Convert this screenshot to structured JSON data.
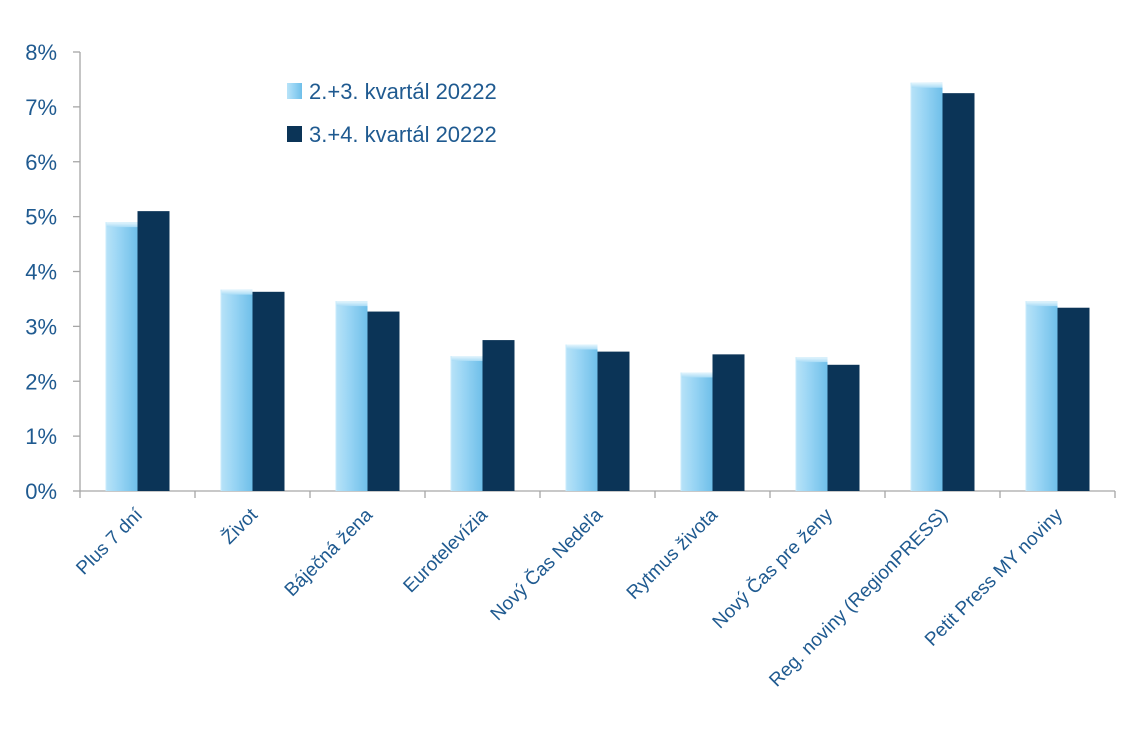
{
  "chart_data": {
    "type": "bar",
    "categories": [
      "Plus 7 dní",
      "Život",
      "Báječná žena",
      "Eurotelevízia",
      "Nový Čas Nedeľa",
      "Rytmus života",
      "Nový Čas pre ženy",
      "Reg. noviny (RegionPRESS)",
      "Petit Press MY noviny"
    ],
    "series": [
      {
        "name": "2.+3. kvartál 20222",
        "values": [
          4.9,
          3.67,
          3.46,
          2.46,
          2.67,
          2.16,
          2.44,
          7.44,
          3.46
        ]
      },
      {
        "name": "3.+4. kvartál 20222",
        "values": [
          5.1,
          3.63,
          3.27,
          2.75,
          2.54,
          2.49,
          2.3,
          7.25,
          3.34
        ]
      }
    ],
    "ylim": [
      0,
      8
    ],
    "yticks": [
      "0%",
      "1%",
      "2%",
      "3%",
      "4%",
      "5%",
      "6%",
      "7%",
      "8%"
    ],
    "grid": false,
    "legend_position": "top-center",
    "colors": {
      "series1": "#8fd0f3",
      "series2": "#0b3457",
      "text": "#1f5a90",
      "axis": "#a6a6a6"
    }
  }
}
